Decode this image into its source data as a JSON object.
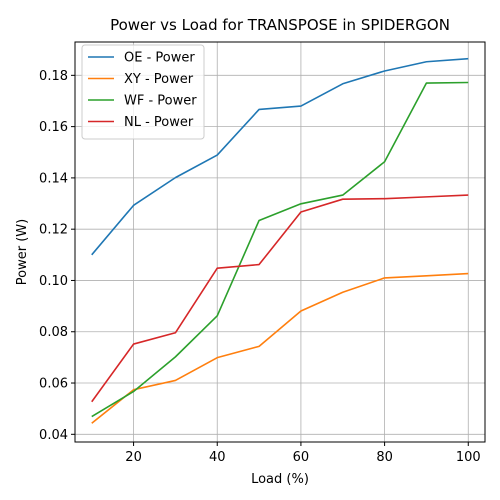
{
  "chart_data": {
    "type": "line",
    "title": "Power vs Load for TRANSPOSE in SPIDERGON",
    "xlabel": "Load (%)",
    "ylabel": "Power (W)",
    "xlim": [
      6,
      104
    ],
    "ylim": [
      0.037,
      0.193
    ],
    "x_ticks": [
      20,
      40,
      60,
      80,
      100
    ],
    "y_ticks": [
      0.04,
      0.06,
      0.08,
      0.1,
      0.12,
      0.14,
      0.16,
      0.18
    ],
    "y_tick_labels": [
      "0.04",
      "0.06",
      "0.08",
      "0.10",
      "0.12",
      "0.14",
      "0.16",
      "0.18"
    ],
    "grid": true,
    "legend_position": "top-left",
    "x": [
      10,
      20,
      30,
      40,
      50,
      60,
      70,
      80,
      90,
      100
    ],
    "series": [
      {
        "name": "OE - Power",
        "color": "#1f77b4",
        "values": [
          0.11,
          0.1293,
          0.1401,
          0.1489,
          0.1667,
          0.168,
          0.1767,
          0.1817,
          0.1853,
          0.1865
        ]
      },
      {
        "name": "XY - Power",
        "color": "#ff7f0e",
        "values": [
          0.0443,
          0.0574,
          0.061,
          0.0699,
          0.0743,
          0.0881,
          0.0954,
          0.101,
          0.1018,
          0.1027
        ]
      },
      {
        "name": "WF - Power",
        "color": "#2ca02c",
        "values": [
          0.0469,
          0.0567,
          0.0702,
          0.0862,
          0.1234,
          0.1299,
          0.1333,
          0.1463,
          0.177,
          0.1772
        ]
      },
      {
        "name": "NL - Power",
        "color": "#d62728",
        "values": [
          0.0527,
          0.0752,
          0.0796,
          0.1048,
          0.1062,
          0.1267,
          0.1317,
          0.1319,
          0.1326,
          0.1333
        ]
      }
    ]
  }
}
